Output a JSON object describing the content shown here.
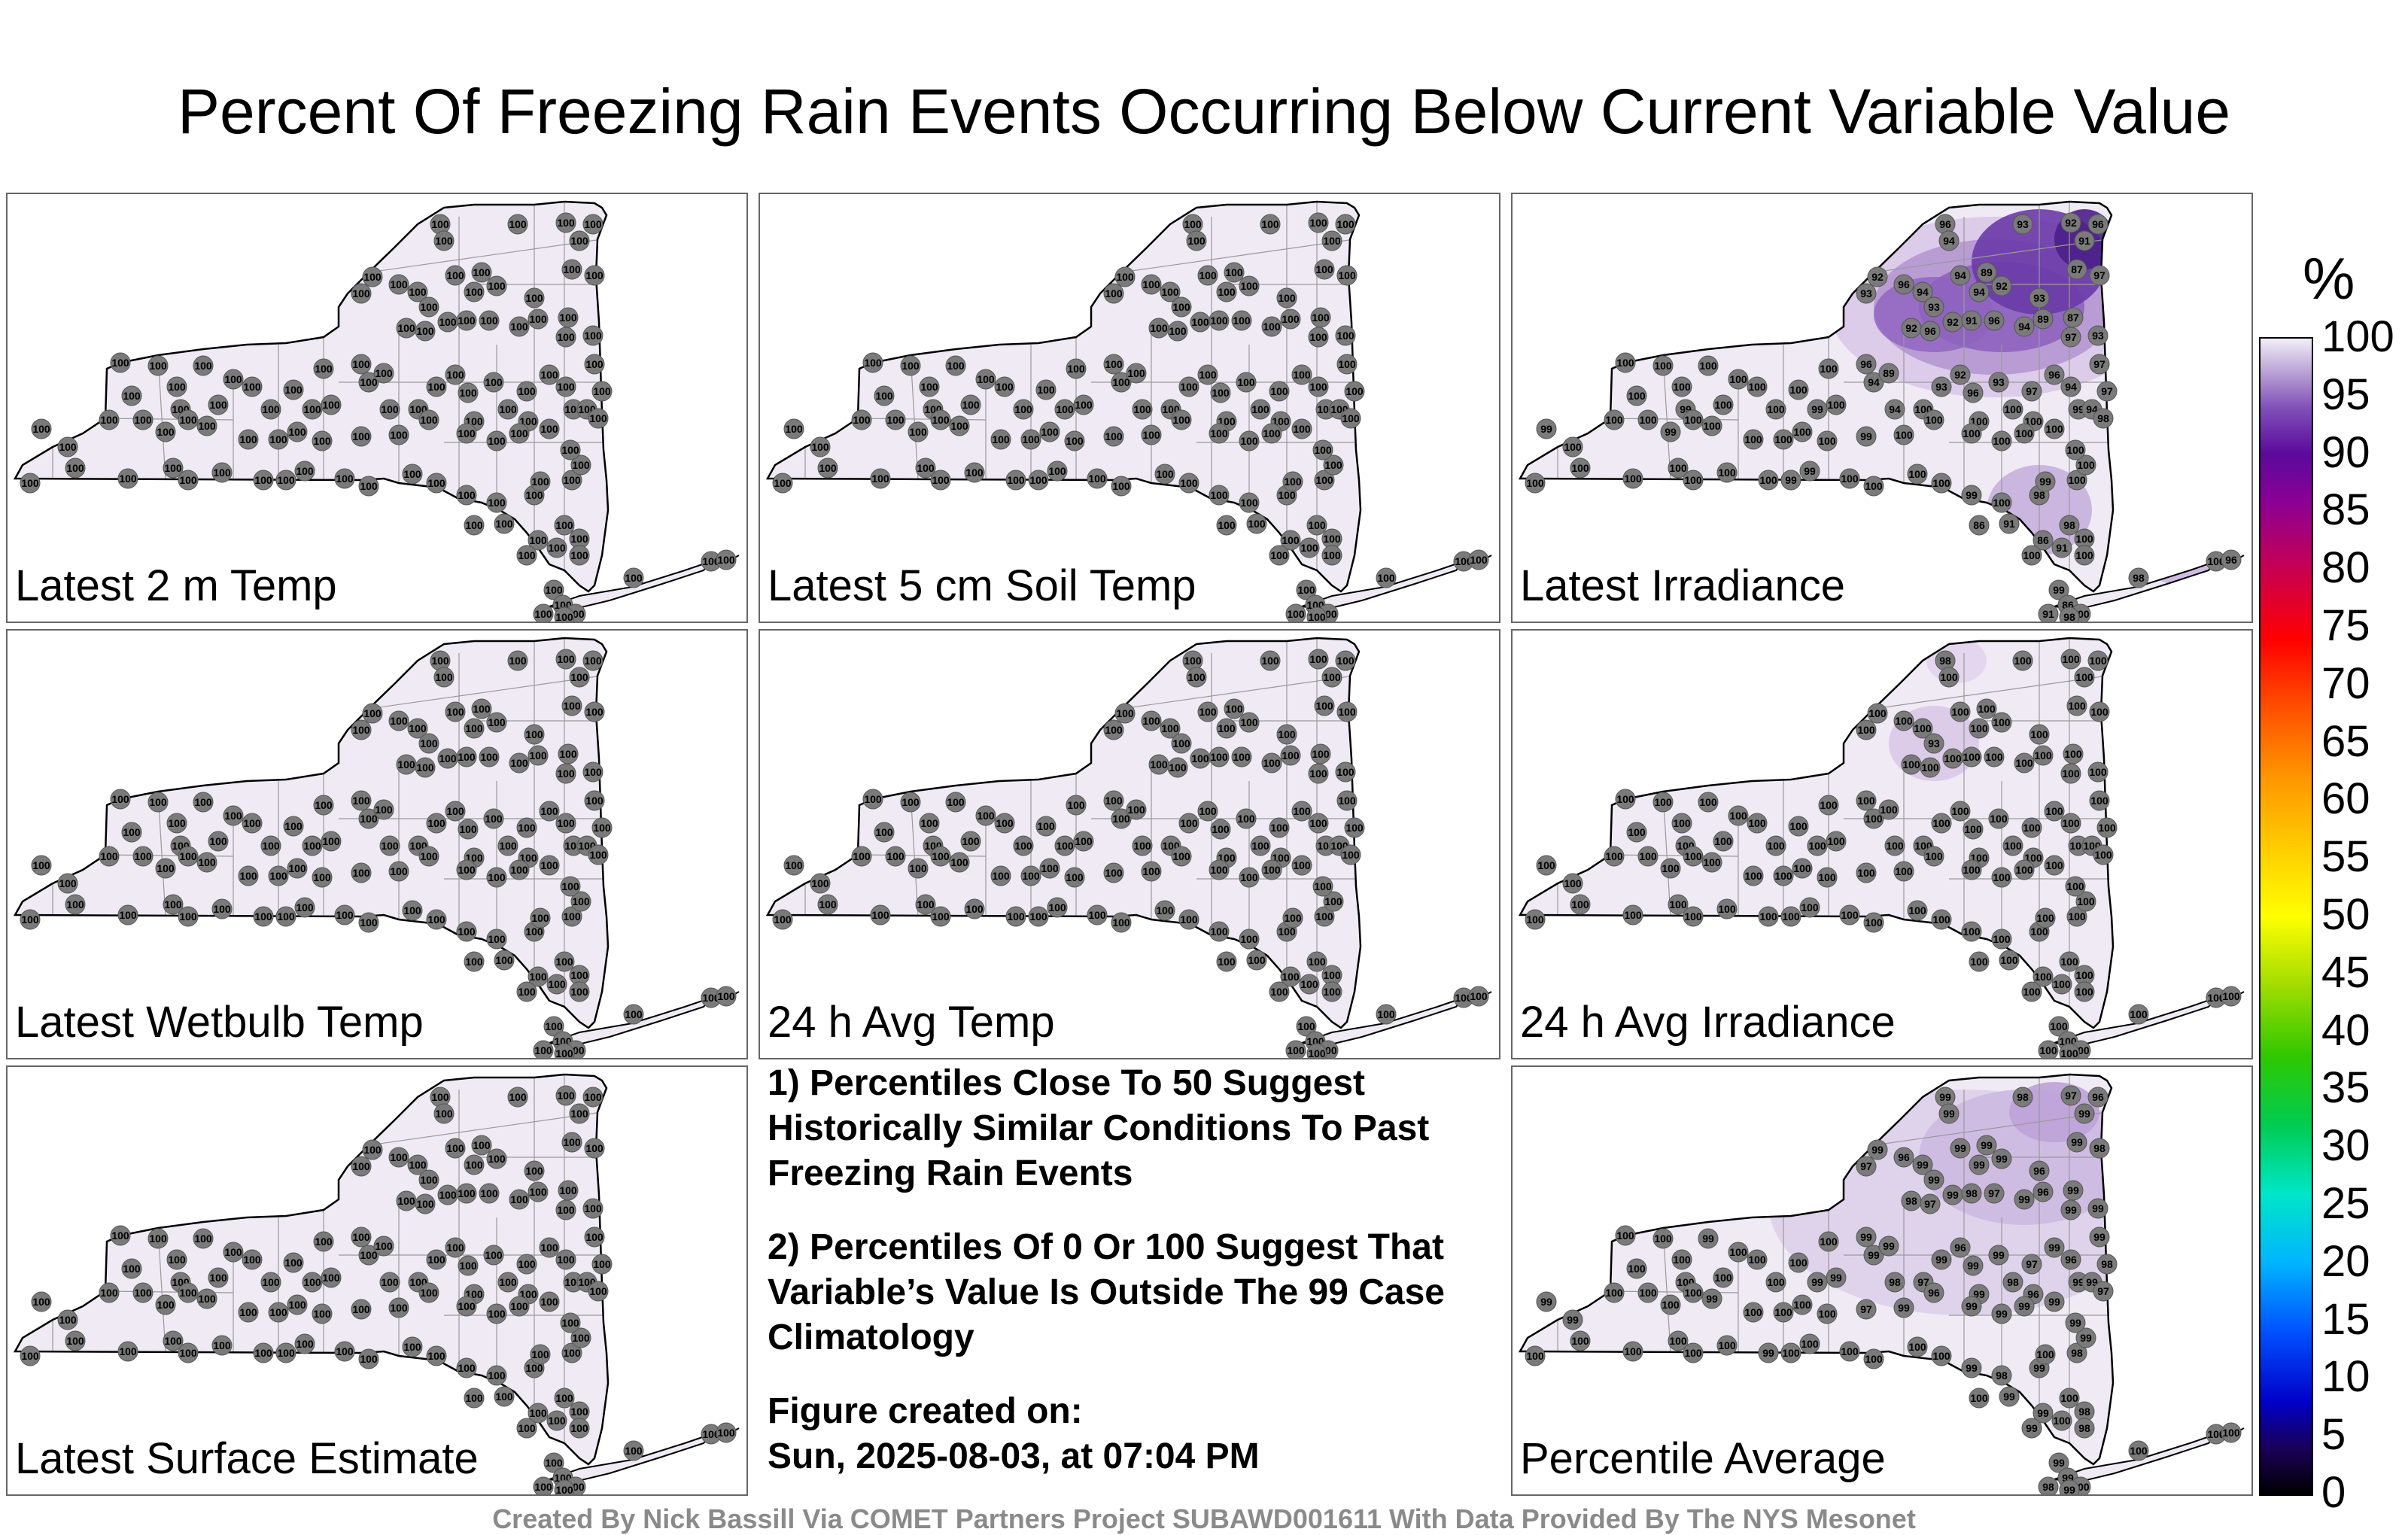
{
  "title": "Percent Of Freezing Rain Events Occurring Below Current Variable Value",
  "panels": [
    {
      "label": "Latest 2 m Temp",
      "mode": "uniform",
      "values": [
        "100"
      ]
    },
    {
      "label": "Latest 5 cm Soil Temp",
      "mode": "uniform",
      "values": [
        "100"
      ]
    },
    {
      "label": "Latest Irradiance",
      "mode": "irradiance",
      "values": [
        "100",
        "99",
        "97",
        "96",
        "94",
        "93",
        "92",
        "91",
        "89",
        "87",
        "98"
      ]
    },
    {
      "label": "Latest Wetbulb Temp",
      "mode": "uniform",
      "values": [
        "100"
      ]
    },
    {
      "label": "24 h Avg Temp",
      "mode": "uniform",
      "values": [
        "100"
      ]
    },
    {
      "label": "24 h Avg Irradiance",
      "mode": "avgirr",
      "values": [
        "100",
        "98",
        "93"
      ]
    },
    {
      "label": "Latest Surface Estimate",
      "mode": "uniform",
      "values": [
        "100"
      ]
    },
    {
      "label": "Percentile Average",
      "mode": "average",
      "values": [
        "100",
        "99",
        "98",
        "97",
        "96"
      ]
    }
  ],
  "notes": {
    "note1": "1) Percentiles Close To 50 Suggest Historically Similar Conditions To Past Freezing Rain Events",
    "note2": "2) Percentiles Of 0 Or 100 Suggest That Variable’s Value Is Outside The 99 Case Climatology",
    "created_label": "Figure created on:",
    "created_value": "Sun, 2025-08-03, at 07:04 PM"
  },
  "colorbar": {
    "unit": "%",
    "ticks": [
      "100",
      "95",
      "90",
      "85",
      "80",
      "75",
      "70",
      "65",
      "60",
      "55",
      "50",
      "45",
      "40",
      "35",
      "30",
      "25",
      "20",
      "15",
      "10",
      "5",
      "0"
    ]
  },
  "credit": "Created By Nick Bassill Via COMET Partners Project SUBAWD001611 With Data Provided By The NYS Mesonet",
  "colors": {
    "map_fill": "#efeaf4",
    "station": "#7a7a7a",
    "shade_light": "#d9c8e8",
    "shade_mid": "#a98ccb",
    "shade_dark": "#6a3aa8"
  }
}
